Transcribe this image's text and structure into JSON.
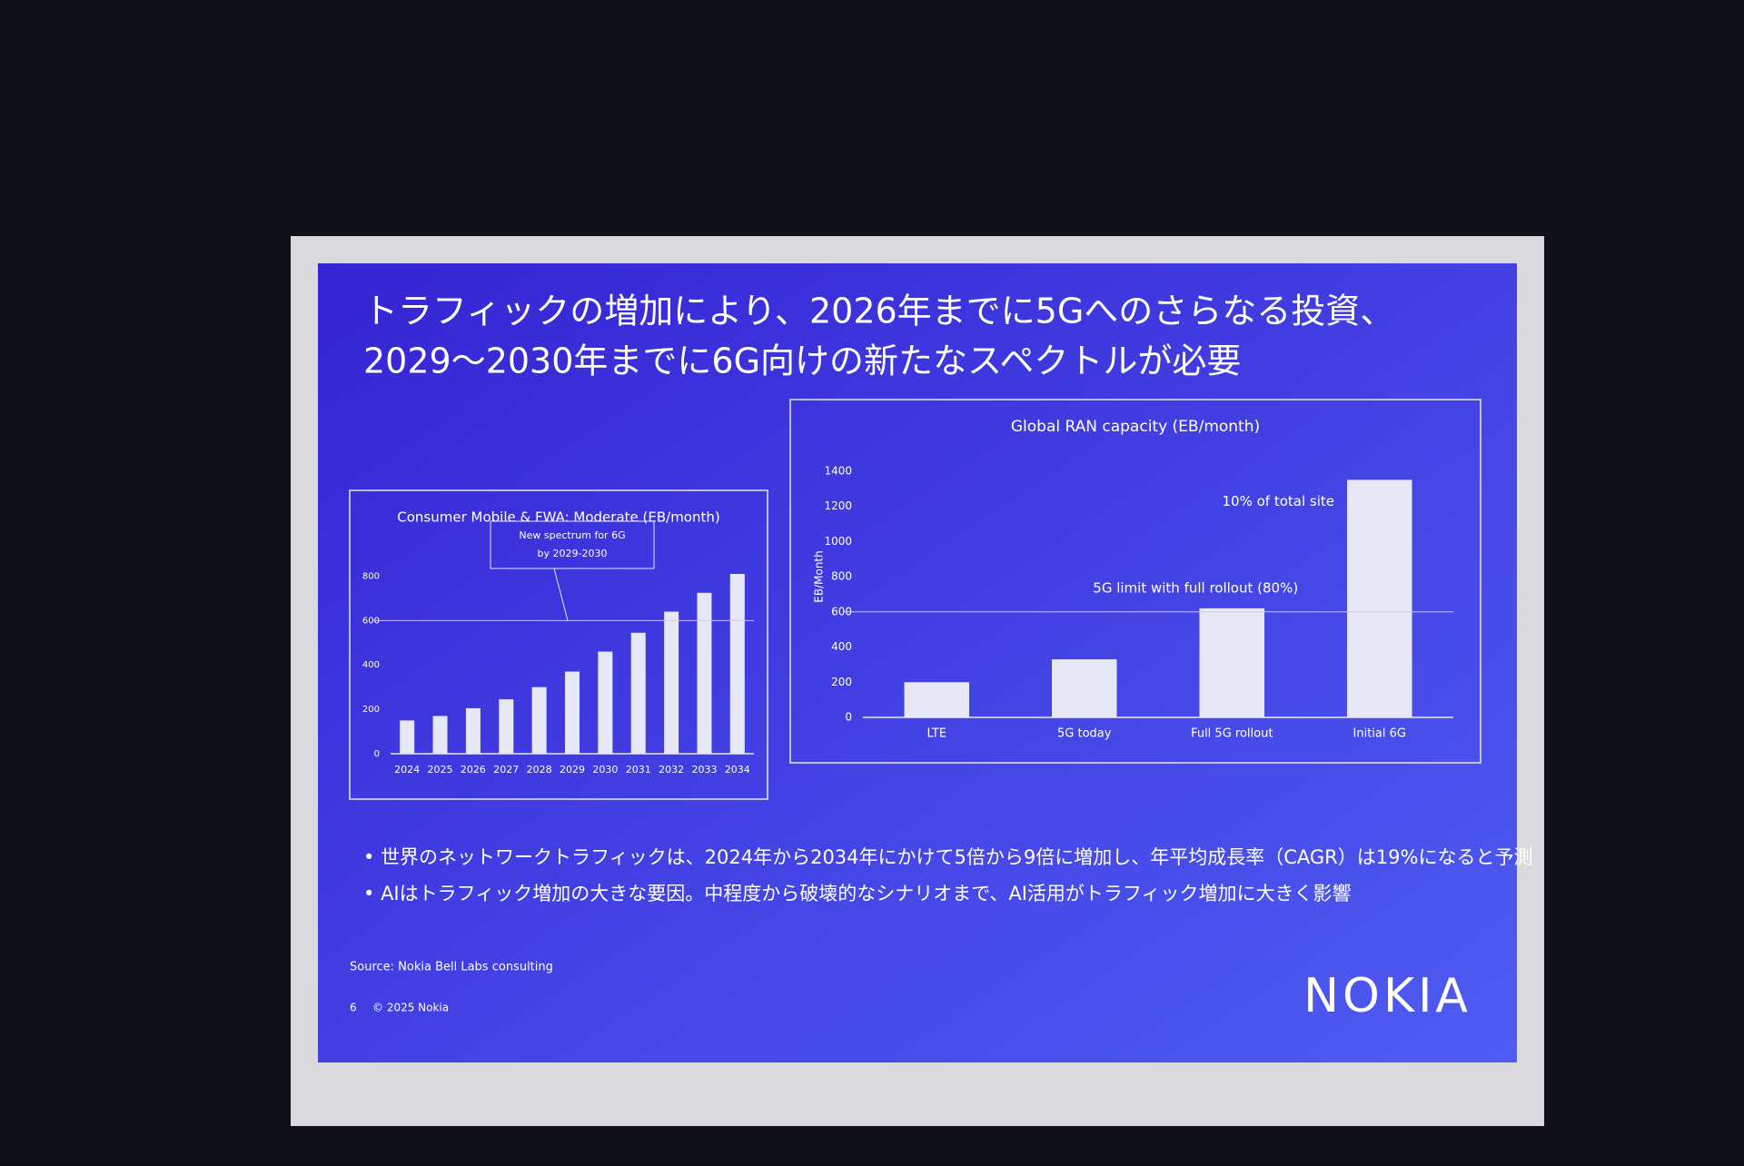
{
  "slide": {
    "title_lines": [
      "トラフィックの増加により、2026年までに5Gへのさらなる投資、",
      "2029～2030年までに6G向けの新たなスペクトルが必要"
    ],
    "bullets": [
      "世界のネットワークトラフィックは、2024年から2034年にかけて5倍から9倍に増加し、年平均成長率（CAGR）は19%になると予測",
      "AIはトラフィック増加の大きな要因。中程度から破壊的なシナリオまで、AI活用がトラフィック増加に大きく影響"
    ],
    "source": "Source: Nokia Bell Labs consulting",
    "page": "6",
    "copyright": "© 2025 Nokia",
    "logo": "NOKIA"
  },
  "chart_data": [
    {
      "type": "bar",
      "title": "Consumer Mobile & FWA: Moderate (EB/month)",
      "categories": [
        "2024",
        "2025",
        "2026",
        "2027",
        "2028",
        "2029",
        "2030",
        "2031",
        "2032",
        "2033",
        "2034"
      ],
      "values": [
        150,
        170,
        205,
        245,
        300,
        370,
        460,
        545,
        640,
        725,
        810
      ],
      "color": "#e6e8f8",
      "ylim": [
        0,
        900
      ],
      "yticks": [
        0,
        200,
        400,
        600,
        800
      ],
      "grid": false,
      "reference_line": 600,
      "annotation": [
        "New spectrum for 6G",
        "by 2029-2030"
      ]
    },
    {
      "type": "bar",
      "title": "Global RAN capacity (EB/month)",
      "y_label": "EB/Month",
      "categories": [
        "LTE",
        "5G today",
        "Full 5G rollout",
        "Initial 6G"
      ],
      "values": [
        200,
        330,
        620,
        1350
      ],
      "color": "#e6e8f8",
      "ylim": [
        0,
        1600
      ],
      "yticks": [
        0,
        200,
        400,
        600,
        800,
        1000,
        1200,
        1400
      ],
      "grid": false,
      "reference_line": 600,
      "annotations": [
        "5G limit with full rollout (80%)",
        "10% of total site"
      ]
    }
  ]
}
